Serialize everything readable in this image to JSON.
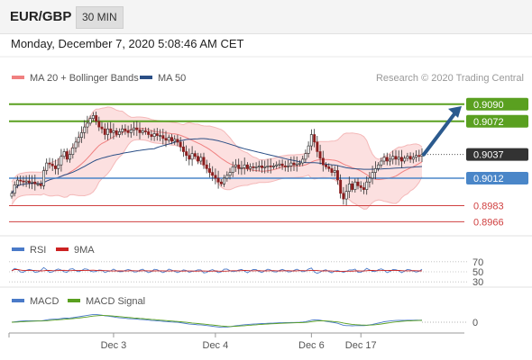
{
  "header": {
    "symbol": "EUR/GBP",
    "timeframe": "30 MIN",
    "datetime": "Monday, December 7, 2020 5:08:46 AM CET"
  },
  "chart_data": {
    "type": "candlestick",
    "instrument": "EUR/GBP",
    "timeframe": "30 MIN",
    "credit": "Research © 2020 Trading Central",
    "price_panel": {
      "legend": [
        {
          "name": "MA 20 + Bollinger Bands",
          "color": "#f08080"
        },
        {
          "name": "MA 50",
          "color": "#2b4f86"
        }
      ],
      "ylim": [
        0.8955,
        0.9105
      ],
      "levels": [
        {
          "value": 0.909,
          "label": "0.9090",
          "color": "#5aa020",
          "kind": "resistance"
        },
        {
          "value": 0.9072,
          "label": "0.9072",
          "color": "#5aa020",
          "kind": "resistance"
        },
        {
          "value": 0.9037,
          "label": "0.9037",
          "color": "#333333",
          "kind": "current"
        },
        {
          "value": 0.9012,
          "label": "0.9012",
          "color": "#4a86c8",
          "kind": "pivot"
        },
        {
          "value": 0.8983,
          "label": "0.8983",
          "color": "#d04040",
          "kind": "support"
        },
        {
          "value": 0.8966,
          "label": "0.8966",
          "color": "#d04040",
          "kind": "support"
        }
      ],
      "arrow": {
        "from": 0.9037,
        "to": 0.9088,
        "direction": "up"
      },
      "close": [
        0.8996,
        0.9005,
        0.901,
        0.9009,
        0.9008,
        0.9009,
        0.9007,
        0.9008,
        0.9006,
        0.9006,
        0.9004,
        0.902,
        0.9028,
        0.9027,
        0.9025,
        0.9022,
        0.9026,
        0.9035,
        0.904,
        0.9032,
        0.9037,
        0.9044,
        0.905,
        0.9055,
        0.906,
        0.9066,
        0.907,
        0.9075,
        0.9078,
        0.9072,
        0.9066,
        0.9064,
        0.9058,
        0.9064,
        0.906,
        0.9062,
        0.9058,
        0.9061,
        0.9064,
        0.9062,
        0.906,
        0.9063,
        0.9065,
        0.9063,
        0.906,
        0.9062,
        0.9061,
        0.9058,
        0.9056,
        0.9059,
        0.9057,
        0.9057,
        0.9054,
        0.9052,
        0.9055,
        0.9051,
        0.9053,
        0.905,
        0.9045,
        0.904,
        0.9036,
        0.9032,
        0.9038,
        0.9035,
        0.903,
        0.9034,
        0.9026,
        0.9022,
        0.9018,
        0.9015,
        0.9012,
        0.9008,
        0.9006,
        0.9012,
        0.9015,
        0.9018,
        0.9024,
        0.9026,
        0.9022,
        0.9023,
        0.9026,
        0.9022,
        0.9024,
        0.9023,
        0.9024,
        0.9025,
        0.9023,
        0.9024,
        0.9025,
        0.9024,
        0.9025,
        0.9026,
        0.9027,
        0.9025,
        0.9024,
        0.9025,
        0.9028,
        0.9026,
        0.9027,
        0.9028,
        0.9032,
        0.9038,
        0.9046,
        0.9058,
        0.905,
        0.904,
        0.9033,
        0.9026,
        0.9024,
        0.9022,
        0.9018,
        0.902,
        0.901,
        0.8996,
        0.899,
        0.8998,
        0.9006,
        0.9,
        0.9008,
        0.9004,
        0.9002,
        0.9,
        0.9008,
        0.9012,
        0.9018,
        0.9022,
        0.9026,
        0.903,
        0.9034,
        0.903,
        0.9032,
        0.9035,
        0.9032,
        0.9034,
        0.903,
        0.9033,
        0.9035,
        0.9032,
        0.9034,
        0.9036,
        0.9035,
        0.9037
      ],
      "x_ticks": [
        {
          "label": "Dec 3",
          "index": 35
        },
        {
          "label": "Dec 4",
          "index": 70
        },
        {
          "label": "Dec 6",
          "index": 103
        },
        {
          "label": "Dec 17",
          "index": 120
        }
      ]
    },
    "rsi_panel": {
      "legend": [
        {
          "name": "RSI",
          "color": "#4a7ac8"
        },
        {
          "name": "9MA",
          "color": "#cc2222"
        }
      ],
      "ylim": [
        25,
        75
      ],
      "levels": [
        {
          "value": 70,
          "label": "70"
        },
        {
          "value": 50,
          "label": "50"
        },
        {
          "value": 30,
          "label": "30"
        }
      ]
    },
    "macd_panel": {
      "legend": [
        {
          "name": "MACD",
          "color": "#4a7ac8"
        },
        {
          "name": "MACD Signal",
          "color": "#5aa020"
        }
      ],
      "levels": [
        {
          "value": 0,
          "label": "0"
        }
      ]
    }
  }
}
